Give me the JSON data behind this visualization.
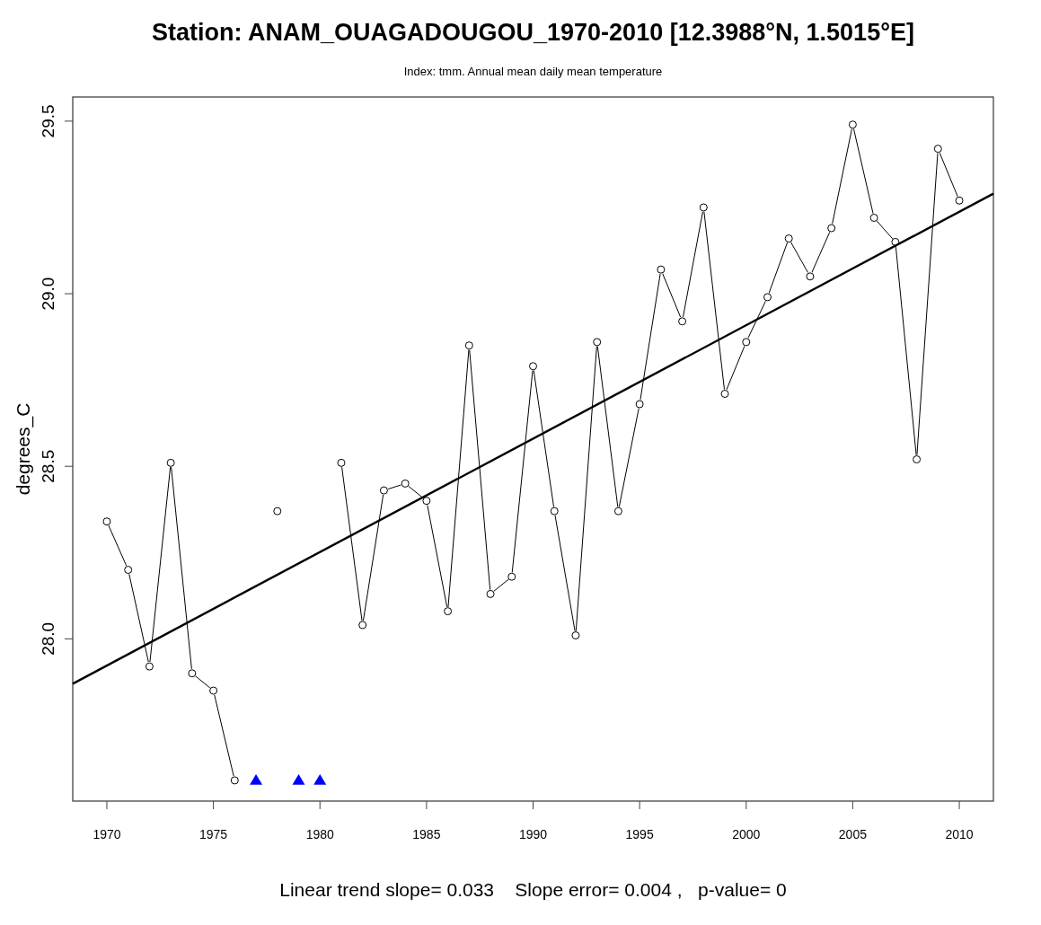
{
  "chart_data": {
    "type": "line",
    "title": "Station: ANAM_OUAGADOUGOU_1970-2010 [12.3988°N, 1.5015°E]",
    "subtitle": "Index: tmm. Annual mean daily mean temperature",
    "ylabel": "degrees_C",
    "annotations": [
      "Linear trend slope= 0.033    Slope error= 0.004 ,   p-value= 0"
    ],
    "x": [
      1970,
      1971,
      1972,
      1973,
      1974,
      1975,
      1976,
      1977,
      1978,
      1979,
      1980,
      1981,
      1982,
      1983,
      1984,
      1985,
      1986,
      1987,
      1988,
      1989,
      1990,
      1991,
      1992,
      1993,
      1994,
      1995,
      1996,
      1997,
      1998,
      1999,
      2000,
      2001,
      2002,
      2003,
      2004,
      2005,
      2006,
      2007,
      2008,
      2009,
      2010
    ],
    "series": [
      {
        "marker": "circle",
        "color": "#000000",
        "values": [
          28.34,
          28.2,
          27.92,
          28.51,
          27.9,
          27.85,
          27.59,
          null,
          28.37,
          null,
          null,
          28.51,
          28.04,
          28.43,
          28.45,
          28.4,
          28.08,
          28.85,
          28.13,
          28.18,
          28.79,
          28.37,
          28.01,
          28.86,
          28.37,
          28.68,
          29.07,
          28.92,
          29.25,
          28.71,
          28.86,
          28.99,
          29.16,
          29.05,
          29.19,
          29.49,
          29.22,
          29.15,
          28.52,
          29.42,
          29.27
        ]
      },
      {
        "type": "scatter",
        "marker": "triangle",
        "color": "#0000ff",
        "x": [
          1977,
          1979,
          1980
        ],
        "values": [
          27.59,
          27.59,
          27.59
        ]
      },
      {
        "type": "line",
        "marker": "none",
        "color": "#000000",
        "x": [
          1968.4,
          2011.6
        ],
        "values": [
          27.87,
          29.29
        ]
      }
    ],
    "xlim": [
      1968.4,
      2011.6
    ],
    "ylim": [
      27.53,
      29.57
    ],
    "xticks": [
      1970,
      1975,
      1980,
      1985,
      1990,
      1995,
      2000,
      2005,
      2010
    ],
    "yticks": [
      {
        "value": 28,
        "label": "28.0"
      },
      28.5,
      {
        "value": 29,
        "label": "29.0"
      },
      29.5
    ]
  }
}
